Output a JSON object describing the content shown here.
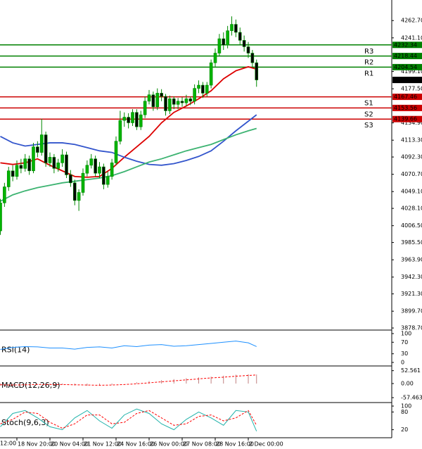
{
  "chart_data": {
    "type": "candlestick",
    "categories": [
      null,
      null,
      null,
      null,
      "18 Nov 20:00",
      null,
      null,
      null,
      null,
      null,
      null,
      null,
      "20 Nov 04:00",
      null,
      null,
      null,
      null,
      null,
      null,
      null,
      "21 Nov 12:00",
      null,
      null,
      null,
      null,
      null,
      null,
      null,
      "24 Nov 16:00",
      null,
      null,
      null,
      null,
      null,
      null,
      null,
      "26 Nov 00:00",
      null,
      null,
      null,
      null,
      null,
      null,
      null,
      "27 Nov 08:00",
      null,
      null,
      null,
      null,
      null,
      null,
      null,
      "28 Nov 16:00",
      null,
      null,
      null,
      null,
      null,
      null,
      null,
      "2 Dec 00:00",
      null,
      null
    ],
    "clipped_time_label": "12:00",
    "ohlc": [
      [
        4000,
        4040,
        3995,
        4035
      ],
      [
        4035,
        4060,
        4030,
        4055
      ],
      [
        4055,
        4080,
        4050,
        4075
      ],
      [
        4075,
        4082,
        4062,
        4068
      ],
      [
        4068,
        4088,
        4064,
        4082
      ],
      [
        4082,
        4090,
        4072,
        4078
      ],
      [
        4078,
        4096,
        4074,
        4090
      ],
      [
        4090,
        4094,
        4070,
        4075
      ],
      [
        4075,
        4110,
        4072,
        4105
      ],
      [
        4105,
        4112,
        4092,
        4098
      ],
      [
        4098,
        4140,
        4094,
        4120
      ],
      [
        4120,
        4124,
        4080,
        4085
      ],
      [
        4085,
        4098,
        4080,
        4092
      ],
      [
        4092,
        4096,
        4072,
        4078
      ],
      [
        4078,
        4090,
        4074,
        4085
      ],
      [
        4085,
        4102,
        4080,
        4095
      ],
      [
        4095,
        4099,
        4066,
        4070
      ],
      [
        4070,
        4076,
        4055,
        4060
      ],
      [
        4060,
        4064,
        4032,
        4038
      ],
      [
        4038,
        4052,
        4025,
        4048
      ],
      [
        4048,
        4078,
        4044,
        4072
      ],
      [
        4072,
        4088,
        4068,
        4082
      ],
      [
        4082,
        4096,
        4078,
        4090
      ],
      [
        4090,
        4094,
        4068,
        4072
      ],
      [
        4072,
        4086,
        4066,
        4080
      ],
      [
        4080,
        4084,
        4052,
        4058
      ],
      [
        4058,
        4074,
        4054,
        4068
      ],
      [
        4068,
        4090,
        4064,
        4085
      ],
      [
        4085,
        4118,
        4082,
        4112
      ],
      [
        4112,
        4150,
        4108,
        4138
      ],
      [
        4138,
        4148,
        4130,
        4142
      ],
      [
        4142,
        4147,
        4128,
        4135
      ],
      [
        4135,
        4152,
        4131,
        4148
      ],
      [
        4148,
        4152,
        4126,
        4130
      ],
      [
        4130,
        4150,
        4126,
        4145
      ],
      [
        4145,
        4168,
        4141,
        4162
      ],
      [
        4162,
        4176,
        4158,
        4170
      ],
      [
        4170,
        4174,
        4150,
        4155
      ],
      [
        4155,
        4178,
        4151,
        4172
      ],
      [
        4172,
        4177,
        4162,
        4168
      ],
      [
        4168,
        4171,
        4144,
        4150
      ],
      [
        4150,
        4169,
        4146,
        4165
      ],
      [
        4165,
        4168,
        4152,
        4158
      ],
      [
        4158,
        4166,
        4152,
        4162
      ],
      [
        4162,
        4167,
        4155,
        4160
      ],
      [
        4160,
        4170,
        4156,
        4165
      ],
      [
        4165,
        4168,
        4157,
        4162
      ],
      [
        4162,
        4183,
        4158,
        4178
      ],
      [
        4178,
        4188,
        4172,
        4182
      ],
      [
        4182,
        4186,
        4166,
        4172
      ],
      [
        4172,
        4186,
        4168,
        4182
      ],
      [
        4182,
        4214,
        4178,
        4210
      ],
      [
        4210,
        4228,
        4205,
        4222
      ],
      [
        4222,
        4246,
        4218,
        4240
      ],
      [
        4240,
        4248,
        4226,
        4232
      ],
      [
        4232,
        4256,
        4228,
        4250
      ],
      [
        4250,
        4268,
        4244,
        4258
      ],
      [
        4258,
        4264,
        4242,
        4248
      ],
      [
        4248,
        4254,
        4232,
        4238
      ],
      [
        4238,
        4244,
        4224,
        4230
      ],
      [
        4230,
        4236,
        4216,
        4222
      ],
      [
        4222,
        4226,
        4204,
        4210
      ],
      [
        4210,
        4214,
        4180,
        4188.54
      ]
    ],
    "up_color": "#00b400",
    "down_color": "#000000",
    "wick_color": "#008800",
    "ylim": [
      3877,
      4284
    ],
    "yticks": [
      {
        "value": 4262.7,
        "label": "4262.70"
      },
      {
        "value": 4241.1,
        "label": "4241.10"
      },
      {
        "value": 4199.1,
        "label": "4199.10"
      },
      {
        "value": 4177.5,
        "label": "4177.50"
      },
      {
        "value": 4134.9,
        "label": "4134.90"
      },
      {
        "value": 4113.3,
        "label": "4113.30"
      },
      {
        "value": 4092.3,
        "label": "4092.30"
      },
      {
        "value": 4070.7,
        "label": "4070.70"
      },
      {
        "value": 4049.1,
        "label": "4049.10"
      },
      {
        "value": 4028.1,
        "label": "4028.10"
      },
      {
        "value": 4006.5,
        "label": "4006.50"
      },
      {
        "value": 3985.5,
        "label": "3985.50"
      },
      {
        "value": 3963.9,
        "label": "3963.90"
      },
      {
        "value": 3942.3,
        "label": "3942.30"
      },
      {
        "value": 3921.3,
        "label": "3921.30"
      },
      {
        "value": 3899.7,
        "label": "3899.70"
      },
      {
        "value": 3878.7,
        "label": "3878.70"
      }
    ],
    "levels": [
      {
        "name": "R3",
        "value": 4232.34,
        "color": "#008000"
      },
      {
        "name": "R2",
        "value": 4218.44,
        "color": "#008000"
      },
      {
        "name": "R1",
        "value": 4204.54,
        "color": "#008000"
      },
      {
        "name": "S1",
        "value": 4167.46,
        "color": "#cc0000"
      },
      {
        "name": "S2",
        "value": 4153.56,
        "color": "#cc0000"
      },
      {
        "name": "S3",
        "value": 4139.66,
        "color": "#cc0000"
      }
    ],
    "last_price": 4188.54,
    "sample_x": [
      0,
      3,
      6,
      9,
      12,
      15,
      18,
      21,
      24,
      27,
      30,
      33,
      36,
      39,
      42,
      45,
      48,
      51,
      54,
      57,
      60,
      62
    ],
    "moving_averages": [
      {
        "color": "#dd0000",
        "values": [
          4085,
          4083,
          4085,
          4090,
          4082,
          4075,
          4068,
          4067,
          4068,
          4078,
          4092,
          4105,
          4118,
          4135,
          4148,
          4156,
          4165,
          4175,
          4190,
          4200,
          4205,
          4202
        ]
      },
      {
        "color": "#3355cc",
        "values": [
          4118,
          4110,
          4106,
          4108,
          4110,
          4110,
          4108,
          4104,
          4100,
          4098,
          4092,
          4087,
          4083,
          4082,
          4084,
          4088,
          4093,
          4100,
          4112,
          4125,
          4137,
          4145
        ]
      },
      {
        "color": "#3cb371",
        "values": [
          4037,
          4045,
          4050,
          4054,
          4057,
          4060,
          4062,
          4064,
          4066,
          4069,
          4074,
          4080,
          4086,
          4090,
          4095,
          4100,
          4104,
          4108,
          4114,
          4120,
          4125,
          4128
        ]
      }
    ],
    "panels": [
      {
        "title": "RSI(14)",
        "ylim": [
          0,
          100
        ],
        "yticks": [
          100,
          70,
          30,
          0
        ],
        "series": [
          {
            "kind": "line",
            "dashed": false,
            "color": "#1e90ff",
            "values": [
              45,
              52,
              55,
              54,
              50,
              50,
              46,
              52,
              54,
              50,
              58,
              55,
              60,
              62,
              56,
              58,
              62,
              66,
              70,
              74,
              68,
              55
            ]
          }
        ]
      },
      {
        "title": "MACD(12,26,9)",
        "ylim": [
          -66,
          66
        ],
        "yticks": [
          52.561,
          {
            "value": 0,
            "label": "0.00"
          },
          -57.463
        ],
        "series": [
          {
            "kind": "histogram",
            "dashed": false,
            "color": "#c08080",
            "values": [
              -8,
              -6,
              -4,
              -2,
              -3,
              -5,
              -8,
              -9,
              -8,
              -5,
              0,
              5,
              10,
              14,
              18,
              22,
              25,
              28,
              32,
              36,
              38,
              37
            ]
          },
          {
            "kind": "line",
            "dashed": true,
            "color": "#ff0000",
            "values": [
              -5,
              -6,
              -5,
              -4,
              -4,
              -4,
              -5,
              -6,
              -7,
              -6,
              -4,
              -1,
              3,
              7,
              11,
              15,
              19,
              23,
              26,
              30,
              33,
              35
            ]
          }
        ]
      },
      {
        "title": "Stoch(9,6,3)",
        "ylim": [
          0,
          100
        ],
        "yticks": [
          100,
          80,
          20
        ],
        "series": [
          {
            "kind": "line",
            "dashed": false,
            "color": "#20b2aa",
            "values": [
              30,
              75,
              85,
              60,
              30,
              20,
              60,
              85,
              50,
              25,
              70,
              90,
              75,
              40,
              20,
              55,
              80,
              60,
              35,
              85,
              80,
              15
            ]
          },
          {
            "kind": "line",
            "dashed": true,
            "color": "#ff0000",
            "values": [
              40,
              55,
              80,
              75,
              45,
              25,
              40,
              70,
              70,
              40,
              45,
              75,
              85,
              60,
              35,
              40,
              65,
              70,
              50,
              60,
              85,
              35
            ]
          }
        ]
      }
    ]
  }
}
